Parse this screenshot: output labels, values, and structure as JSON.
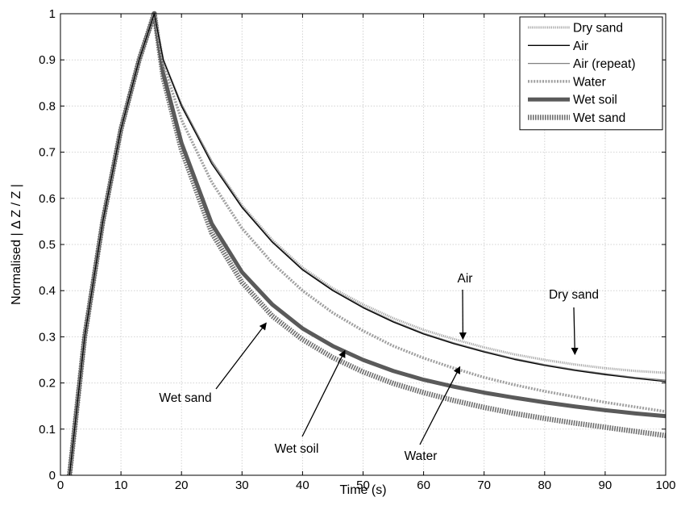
{
  "chart_data": {
    "type": "line",
    "xlabel": "Time (s)",
    "ylabel": "Normalised | Δ Z / Z |",
    "xlim": [
      0,
      100
    ],
    "ylim": [
      0,
      1
    ],
    "xticks": [
      0,
      10,
      20,
      30,
      40,
      50,
      60,
      70,
      80,
      90,
      100
    ],
    "yticks": [
      0,
      0.1,
      0.2,
      0.3,
      0.4,
      0.5,
      0.6,
      0.7,
      0.8,
      0.9,
      1
    ],
    "grid": true,
    "legend_position": "top-right",
    "series": [
      {
        "name": "Dry sand",
        "color": "#a8a8a8",
        "style": "dotted-thin",
        "x": [
          1.5,
          4,
          7,
          10,
          13,
          15.5,
          17,
          20,
          25,
          30,
          35,
          40,
          45,
          50,
          55,
          60,
          65,
          70,
          75,
          80,
          85,
          90,
          95,
          100
        ],
        "y": [
          0,
          0.3,
          0.55,
          0.75,
          0.9,
          1,
          0.9,
          0.8,
          0.68,
          0.585,
          0.51,
          0.45,
          0.405,
          0.37,
          0.34,
          0.315,
          0.295,
          0.277,
          0.262,
          0.25,
          0.24,
          0.232,
          0.226,
          0.222
        ]
      },
      {
        "name": "Air",
        "color": "#000000",
        "style": "solid-thin",
        "x": [
          1.5,
          4,
          7,
          10,
          13,
          15.5,
          17,
          20,
          25,
          30,
          35,
          40,
          45,
          50,
          55,
          60,
          65,
          70,
          75,
          80,
          85,
          90,
          95,
          100
        ],
        "y": [
          0,
          0.3,
          0.55,
          0.75,
          0.9,
          1,
          0.9,
          0.8,
          0.675,
          0.58,
          0.505,
          0.445,
          0.4,
          0.363,
          0.332,
          0.306,
          0.285,
          0.267,
          0.251,
          0.238,
          0.227,
          0.218,
          0.21,
          0.203
        ]
      },
      {
        "name": "Air (repeat)",
        "color": "#808080",
        "style": "solid-thin",
        "x": [
          1.5,
          4,
          7,
          10,
          13,
          15.5,
          17,
          20,
          25,
          30,
          35,
          40,
          45,
          50,
          55,
          60,
          65,
          70,
          75,
          80,
          85,
          90,
          95,
          100
        ],
        "y": [
          0,
          0.3,
          0.55,
          0.75,
          0.9,
          1,
          0.9,
          0.805,
          0.68,
          0.583,
          0.507,
          0.447,
          0.402,
          0.365,
          0.334,
          0.308,
          0.287,
          0.269,
          0.253,
          0.24,
          0.229,
          0.22,
          0.212,
          0.206
        ]
      },
      {
        "name": "Water",
        "color": "#a0a0a0",
        "style": "dotted-medium",
        "x": [
          1.5,
          4,
          7,
          10,
          13,
          15.5,
          17,
          20,
          25,
          30,
          35,
          40,
          45,
          50,
          55,
          60,
          65,
          70,
          75,
          80,
          85,
          90,
          95,
          100
        ],
        "y": [
          0,
          0.3,
          0.55,
          0.75,
          0.9,
          1,
          0.89,
          0.77,
          0.635,
          0.535,
          0.46,
          0.4,
          0.352,
          0.313,
          0.28,
          0.254,
          0.232,
          0.212,
          0.196,
          0.182,
          0.17,
          0.158,
          0.148,
          0.138
        ]
      },
      {
        "name": "Wet soil",
        "color": "#5a5a5a",
        "style": "solid-thick",
        "x": [
          1.5,
          4,
          7,
          10,
          13,
          15.5,
          17,
          20,
          25,
          30,
          35,
          40,
          45,
          50,
          55,
          60,
          65,
          70,
          75,
          80,
          85,
          90,
          95,
          100
        ],
        "y": [
          0,
          0.3,
          0.55,
          0.75,
          0.9,
          1,
          0.87,
          0.72,
          0.545,
          0.44,
          0.37,
          0.318,
          0.28,
          0.25,
          0.226,
          0.207,
          0.192,
          0.179,
          0.168,
          0.158,
          0.149,
          0.141,
          0.134,
          0.128
        ]
      },
      {
        "name": "Wet sand",
        "color": "#6e6e6e",
        "style": "dotted-thick",
        "x": [
          1.5,
          4,
          7,
          10,
          13,
          15.5,
          17,
          20,
          25,
          30,
          35,
          40,
          45,
          50,
          55,
          60,
          65,
          70,
          75,
          80,
          85,
          90,
          95,
          100
        ],
        "y": [
          0,
          0.3,
          0.55,
          0.75,
          0.9,
          1,
          0.86,
          0.705,
          0.525,
          0.418,
          0.345,
          0.294,
          0.255,
          0.224,
          0.199,
          0.179,
          0.162,
          0.147,
          0.134,
          0.123,
          0.113,
          0.104,
          0.095,
          0.086
        ]
      }
    ],
    "annotations": [
      {
        "text": "Air",
        "tip": [
          66.5,
          0.295
        ]
      },
      {
        "text": "Dry sand",
        "tip": [
          85,
          0.262
        ]
      },
      {
        "text": "Wet sand",
        "tip": [
          34,
          0.33
        ]
      },
      {
        "text": "Wet soil",
        "tip": [
          47,
          0.27
        ]
      },
      {
        "text": "Water",
        "tip": [
          66,
          0.235
        ]
      }
    ]
  }
}
